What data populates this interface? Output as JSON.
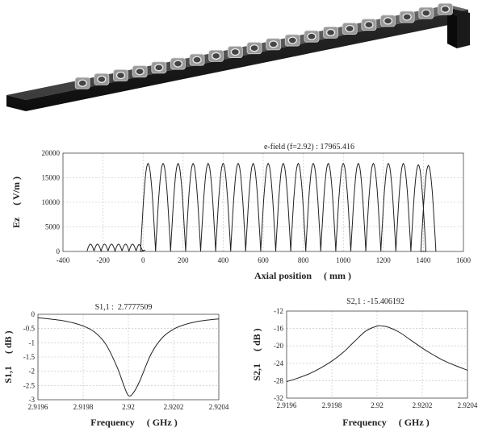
{
  "structure": {
    "description_free": true
  },
  "chart_data": [
    {
      "type": "line",
      "title": "e-field (f=2.92) : 17965.416",
      "xlabel": "Axial position     ( mm )",
      "ylabel": "Ez     ( V/m )",
      "xlim": [
        -400,
        1600
      ],
      "ylim": [
        0,
        20000
      ],
      "xticks": [
        -400,
        -200,
        0,
        200,
        400,
        600,
        800,
        1000,
        1200,
        1400,
        1600
      ],
      "yticks": [
        0,
        5000,
        10000,
        15000,
        20000
      ],
      "grid": true,
      "series": [
        {
          "peaks_x": [
            25,
            100,
            175,
            250,
            325,
            400,
            475,
            550,
            625,
            700,
            775,
            850,
            925,
            1000,
            1075,
            1150,
            1225,
            1300,
            1375,
            1425
          ],
          "peak_y": [
            17900,
            17900,
            17900,
            17900,
            17900,
            17900,
            17900,
            17900,
            17900,
            17900,
            17900,
            17900,
            17900,
            17900,
            17900,
            17900,
            17900,
            17900,
            17600,
            17500
          ],
          "x_start": -280,
          "x_end": 1450,
          "ripple_amplitude": 1400
        }
      ]
    },
    {
      "type": "line",
      "title": "S1,1 :  2.7777509",
      "xlabel": "Frequency     ( GHz )",
      "ylabel": "S1,1     ( dB )",
      "xlim": [
        2.9196,
        2.9204
      ],
      "ylim": [
        -3,
        0
      ],
      "xticks": [
        2.9196,
        2.9198,
        2.92,
        2.9202,
        2.9204
      ],
      "xtick_labels": [
        "2.9196",
        "2.9198",
        "2.92",
        "2.9202",
        "2.9204"
      ],
      "yticks": [
        0,
        -0.5,
        -1,
        -1.5,
        -2,
        -2.5,
        -3
      ],
      "ytick_labels": [
        "0",
        "-0.5",
        "-1",
        "-1.5",
        "-2",
        "-2.5",
        "-3"
      ],
      "grid": true,
      "series": [
        {
          "x": [
            2.9196,
            2.91965,
            2.9197,
            2.91975,
            2.9198,
            2.91985,
            2.9199,
            2.91995,
            2.91998,
            2.92,
            2.92002,
            2.92005,
            2.9201,
            2.92015,
            2.9202,
            2.92025,
            2.9203,
            2.92035,
            2.9204
          ],
          "y": [
            -0.12,
            -0.16,
            -0.21,
            -0.29,
            -0.41,
            -0.62,
            -1.05,
            -1.85,
            -2.5,
            -2.85,
            -2.78,
            -2.35,
            -1.4,
            -0.82,
            -0.52,
            -0.36,
            -0.26,
            -0.2,
            -0.16
          ]
        }
      ]
    },
    {
      "type": "line",
      "title": "S2,1 : -15.406192",
      "xlabel": "Frequency     ( GHz )",
      "ylabel": "S2,1     ( dB )",
      "xlim": [
        2.9196,
        2.9204
      ],
      "ylim": [
        -32,
        -12
      ],
      "xticks": [
        2.9196,
        2.9198,
        2.92,
        2.9202,
        2.9204
      ],
      "xtick_labels": [
        "2.9196",
        "2.9198",
        "2.92",
        "2.9202",
        "2.9204"
      ],
      "yticks": [
        -12,
        -16,
        -20,
        -24,
        -28,
        -32
      ],
      "ytick_labels": [
        "-12",
        "-16",
        "-20",
        "-24",
        "-28",
        "-32"
      ],
      "grid": true,
      "series": [
        {
          "x": [
            2.9196,
            2.91965,
            2.9197,
            2.91975,
            2.9198,
            2.91985,
            2.9199,
            2.91995,
            2.92,
            2.92002,
            2.92005,
            2.9201,
            2.92015,
            2.9202,
            2.92025,
            2.9203,
            2.92035,
            2.9204
          ],
          "y": [
            -28.2,
            -27.4,
            -26.4,
            -25.1,
            -23.5,
            -21.5,
            -19.0,
            -16.6,
            -15.45,
            -15.4,
            -15.7,
            -16.9,
            -18.7,
            -20.5,
            -22.1,
            -23.5,
            -24.6,
            -25.6
          ]
        }
      ]
    }
  ]
}
